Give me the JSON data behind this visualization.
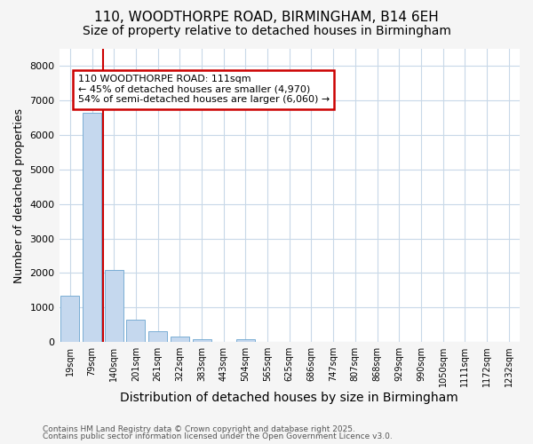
{
  "title_line1": "110, WOODTHORPE ROAD, BIRMINGHAM, B14 6EH",
  "title_line2": "Size of property relative to detached houses in Birmingham",
  "xlabel": "Distribution of detached houses by size in Birmingham",
  "ylabel": "Number of detached properties",
  "categories": [
    "19sqm",
    "79sqm",
    "140sqm",
    "201sqm",
    "261sqm",
    "322sqm",
    "383sqm",
    "443sqm",
    "504sqm",
    "565sqm",
    "625sqm",
    "686sqm",
    "747sqm",
    "807sqm",
    "868sqm",
    "929sqm",
    "990sqm",
    "1050sqm",
    "1111sqm",
    "1172sqm",
    "1232sqm"
  ],
  "values": [
    1350,
    6650,
    2100,
    650,
    320,
    150,
    80,
    0,
    80,
    0,
    0,
    0,
    0,
    0,
    0,
    0,
    0,
    0,
    0,
    0,
    0
  ],
  "bar_color": "#c5d8ee",
  "bar_edge_color": "#7aaed4",
  "red_line_x": 1.5,
  "annotation_text": "110 WOODTHORPE ROAD: 111sqm\n← 45% of detached houses are smaller (4,970)\n54% of semi-detached houses are larger (6,060) →",
  "annotation_box_color": "#ffffff",
  "annotation_border_color": "#cc0000",
  "ylim": [
    0,
    8500
  ],
  "yticks": [
    0,
    1000,
    2000,
    3000,
    4000,
    5000,
    6000,
    7000,
    8000
  ],
  "footer_line1": "Contains HM Land Registry data © Crown copyright and database right 2025.",
  "footer_line2": "Contains public sector information licensed under the Open Government Licence v3.0.",
  "bg_color": "#f5f5f5",
  "plot_bg_color": "#ffffff",
  "grid_color": "#c8d8e8",
  "title_fontsize": 11,
  "subtitle_fontsize": 10,
  "xlabel_fontsize": 10,
  "ylabel_fontsize": 9
}
